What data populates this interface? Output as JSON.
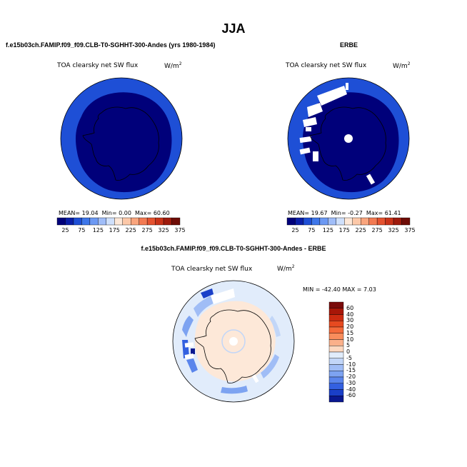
{
  "page": {
    "main_title": "JJA"
  },
  "chart_data": [
    {
      "type": "heatmap",
      "projection": "south-polar-stereographic",
      "title": "f.e15b03ch.FAMIP.f09_f09.CLB-T0-SGHHT-300-Andes (yrs 1980-1984)",
      "variable": "TOA clearsky net SW flux",
      "units": "W/m",
      "units_exp": "2",
      "stats": {
        "mean_label": "MEAN=",
        "mean": "19.04",
        "min_label": "Min=",
        "min": "0.00",
        "max_label": "Max=",
        "max": "60.60"
      },
      "colorbar": {
        "orientation": "horizontal",
        "labels": [
          "25",
          "75",
          "125",
          "175",
          "225",
          "275",
          "325",
          "375"
        ],
        "colors": [
          "#00007a",
          "#0a1ea8",
          "#1e4fd6",
          "#3e77ea",
          "#6c99f3",
          "#a0bdf8",
          "#cfe0fb",
          "#fde8d8",
          "#fcc8a8",
          "#f9a57d",
          "#f27a52",
          "#e4522f",
          "#c83218",
          "#9e1a0c",
          "#6e0c06"
        ]
      },
      "dominant_level": "#00007a"
    },
    {
      "type": "heatmap",
      "projection": "south-polar-stereographic",
      "title": "ERBE",
      "variable": "TOA clearsky net SW flux",
      "units": "W/m",
      "units_exp": "2",
      "stats": {
        "mean_label": "MEAN=",
        "mean": "19.67",
        "min_label": "Min=",
        "min": "-0.27",
        "max_label": "Max=",
        "max": "61.41"
      },
      "colorbar": {
        "orientation": "horizontal",
        "labels": [
          "25",
          "75",
          "125",
          "175",
          "225",
          "275",
          "325",
          "375"
        ]
      },
      "missing_data": true
    },
    {
      "type": "heatmap",
      "projection": "south-polar-stereographic",
      "title": "f.e15b03ch.FAMIP.f09_f09.CLB-T0-SGHHT-300-Andes - ERBE",
      "variable": "TOA clearsky net SW flux",
      "units": "W/m",
      "units_exp": "2",
      "stats_line": "MIN = -42.40 MAX =   7.03",
      "colorbar": {
        "orientation": "vertical",
        "labels": [
          "60",
          "40",
          "30",
          "20",
          "15",
          "10",
          "5",
          "0",
          "-5",
          "-10",
          "-15",
          "-20",
          "-30",
          "-40",
          "-60"
        ],
        "colors": [
          "#7a0a0a",
          "#a81608",
          "#cc2a10",
          "#e64a20",
          "#f46a3a",
          "#f98d5c",
          "#fbb08a",
          "#fdd8c0",
          "#e1ecfb",
          "#c2d6f8",
          "#a0bdf6",
          "#7da3f1",
          "#5a85ec",
          "#3360e0",
          "#1a3fc8",
          "#0a1890"
        ]
      }
    }
  ]
}
